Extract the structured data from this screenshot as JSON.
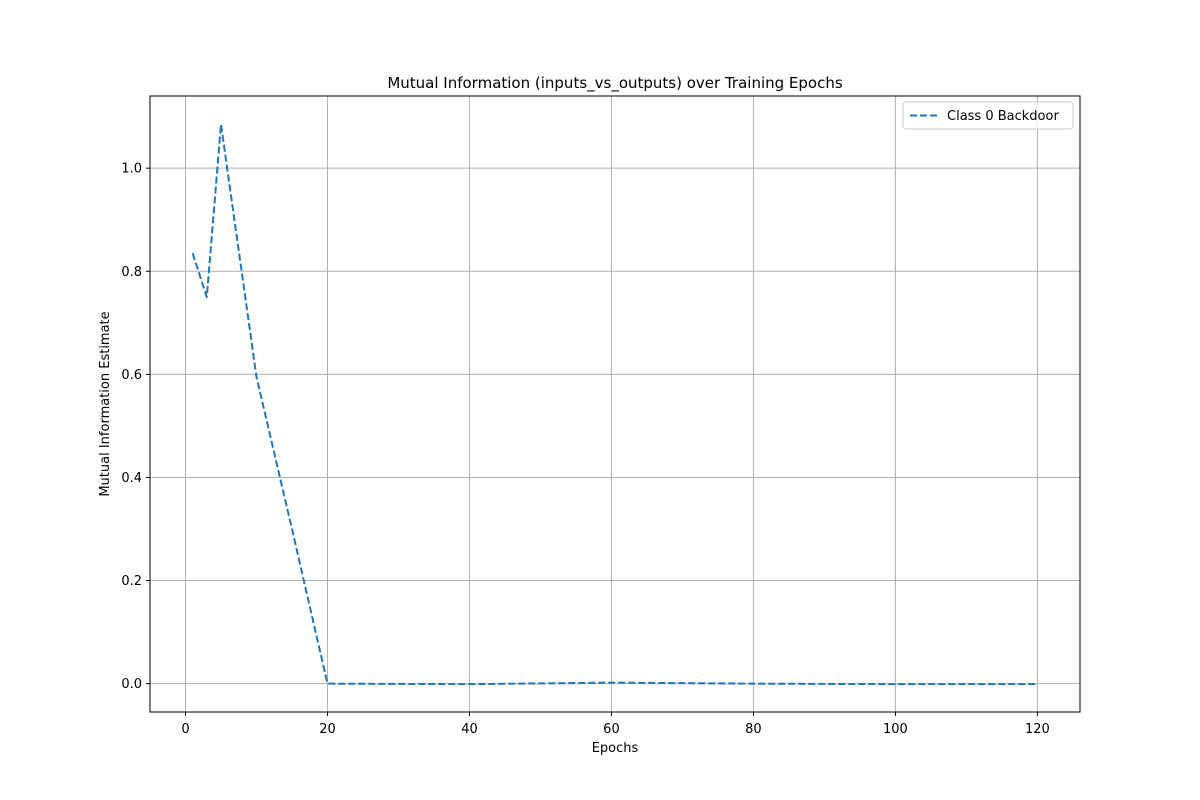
{
  "chart_data": {
    "type": "line",
    "title": "Mutual Information (inputs_vs_outputs) over Training Epochs",
    "xlabel": "Epochs",
    "ylabel": "Mutual Information Estimate",
    "xlim": [
      -5,
      126
    ],
    "ylim": [
      -0.055,
      1.14
    ],
    "xticks": [
      0,
      20,
      40,
      60,
      80,
      100,
      120
    ],
    "yticks": [
      0.0,
      0.2,
      0.4,
      0.6,
      0.8,
      1.0
    ],
    "xtick_labels": [
      "0",
      "20",
      "40",
      "60",
      "80",
      "100",
      "120"
    ],
    "ytick_labels": [
      "0.0",
      "0.2",
      "0.4",
      "0.6",
      "0.8",
      "1.0"
    ],
    "grid": true,
    "legend_position": "top-right",
    "series": [
      {
        "name": "Class 0 Backdoor",
        "color": "#1f77b4",
        "line_style": "dashed",
        "x": [
          1,
          3,
          5,
          10,
          15,
          20,
          40,
          60,
          80,
          100,
          120
        ],
        "y": [
          0.835,
          0.75,
          1.085,
          0.595,
          0.3,
          0.0,
          -0.001,
          0.002,
          0.0,
          -0.001,
          -0.001
        ]
      }
    ]
  }
}
